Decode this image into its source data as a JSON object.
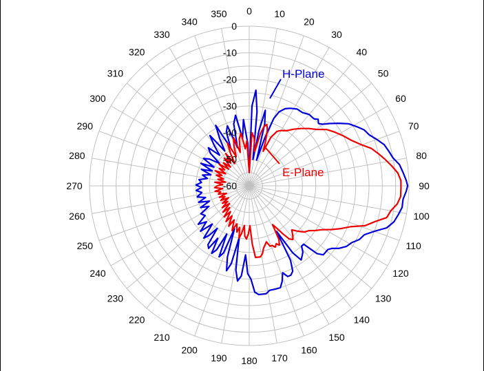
{
  "chart_data": {
    "type": "polar-line",
    "angle_ticks": [
      "0",
      "10",
      "20",
      "30",
      "40",
      "50",
      "60",
      "70",
      "80",
      "90",
      "100",
      "110",
      "120",
      "130",
      "140",
      "150",
      "160",
      "170",
      "180",
      "190",
      "200",
      "210",
      "220",
      "230",
      "240",
      "250",
      "260",
      "270",
      "280",
      "290",
      "300",
      "310",
      "320",
      "330",
      "340",
      "350"
    ],
    "radial_ticks": [
      "0",
      "-10",
      "-20",
      "-30",
      "-40",
      "-50",
      "-60"
    ],
    "radial_range": [
      -60,
      0
    ],
    "grid": true,
    "series": [
      {
        "name": "H-Plane",
        "color": "#0000dd",
        "points": [
          [
            0,
            -55
          ],
          [
            2,
            -30
          ],
          [
            4,
            -24
          ],
          [
            6,
            -32
          ],
          [
            8,
            -50
          ],
          [
            10,
            -39
          ],
          [
            12,
            -31
          ],
          [
            14,
            -36
          ],
          [
            16,
            -50
          ],
          [
            18,
            -41
          ],
          [
            20,
            -33
          ],
          [
            22,
            -30
          ],
          [
            25,
            -28
          ],
          [
            28,
            -27
          ],
          [
            32,
            -26
          ],
          [
            36,
            -26
          ],
          [
            40,
            -25
          ],
          [
            44,
            -25
          ],
          [
            46,
            -24
          ],
          [
            48,
            -25
          ],
          [
            50,
            -24
          ],
          [
            52,
            -22
          ],
          [
            55,
            -19
          ],
          [
            58,
            -16
          ],
          [
            61,
            -14
          ],
          [
            64,
            -12
          ],
          [
            67,
            -11
          ],
          [
            70,
            -9
          ],
          [
            73,
            -7
          ],
          [
            76,
            -6
          ],
          [
            79,
            -5
          ],
          [
            82,
            -3
          ],
          [
            85,
            -2
          ],
          [
            88,
            -1
          ],
          [
            90,
            -0.5
          ],
          [
            92,
            -1
          ],
          [
            95,
            -2
          ],
          [
            98,
            -2
          ],
          [
            101,
            -3
          ],
          [
            104,
            -4
          ],
          [
            107,
            -6
          ],
          [
            110,
            -10
          ],
          [
            113,
            -13
          ],
          [
            116,
            -14
          ],
          [
            119,
            -16
          ],
          [
            122,
            -17
          ],
          [
            125,
            -19
          ],
          [
            127,
            -21
          ],
          [
            129,
            -22
          ],
          [
            131,
            -22
          ],
          [
            133,
            -22
          ],
          [
            135,
            -24
          ],
          [
            137,
            -30
          ],
          [
            139,
            -30
          ],
          [
            141,
            -28
          ],
          [
            143,
            -27
          ],
          [
            145,
            -26
          ],
          [
            147,
            -30
          ],
          [
            149,
            -40
          ],
          [
            151,
            -28
          ],
          [
            153,
            -24
          ],
          [
            155,
            -23
          ],
          [
            157,
            -23
          ],
          [
            159,
            -25
          ],
          [
            161,
            -22
          ],
          [
            163,
            -20
          ],
          [
            165,
            -20
          ],
          [
            167,
            -20
          ],
          [
            169,
            -20
          ],
          [
            171,
            -19
          ],
          [
            173,
            -19
          ],
          [
            175,
            -19
          ],
          [
            177,
            -20
          ],
          [
            179,
            -25
          ],
          [
            181,
            -27
          ],
          [
            183,
            -34
          ],
          [
            185,
            -26
          ],
          [
            187,
            -24
          ],
          [
            189,
            -28
          ],
          [
            191,
            -40
          ],
          [
            193,
            -30
          ],
          [
            195,
            -27
          ],
          [
            197,
            -32
          ],
          [
            199,
            -43
          ],
          [
            201,
            -33
          ],
          [
            203,
            -31
          ],
          [
            205,
            -40
          ],
          [
            207,
            -33
          ],
          [
            209,
            -31
          ],
          [
            211,
            -37
          ],
          [
            213,
            -32
          ],
          [
            215,
            -33
          ],
          [
            217,
            -40
          ],
          [
            219,
            -36
          ],
          [
            221,
            -34
          ],
          [
            224,
            -40
          ],
          [
            227,
            -35
          ],
          [
            230,
            -39
          ],
          [
            233,
            -36
          ],
          [
            236,
            -40
          ],
          [
            240,
            -39
          ],
          [
            243,
            -43
          ],
          [
            246,
            -40
          ],
          [
            249,
            -44
          ],
          [
            252,
            -40
          ],
          [
            255,
            -43
          ],
          [
            258,
            -40
          ],
          [
            262,
            -42
          ],
          [
            265,
            -40
          ],
          [
            268,
            -42
          ],
          [
            271,
            -40
          ],
          [
            274,
            -42
          ],
          [
            277,
            -41
          ],
          [
            280,
            -44
          ],
          [
            283,
            -42
          ],
          [
            286,
            -45
          ],
          [
            289,
            -41
          ],
          [
            292,
            -45
          ],
          [
            295,
            -40
          ],
          [
            298,
            -45
          ],
          [
            301,
            -40
          ],
          [
            304,
            -42
          ],
          [
            307,
            -46
          ],
          [
            310,
            -41
          ],
          [
            313,
            -39
          ],
          [
            316,
            -44
          ],
          [
            319,
            -40
          ],
          [
            322,
            -36
          ],
          [
            325,
            -44
          ],
          [
            328,
            -39
          ],
          [
            331,
            -34
          ],
          [
            334,
            -44
          ],
          [
            337,
            -38
          ],
          [
            340,
            -36
          ],
          [
            343,
            -45
          ],
          [
            346,
            -36
          ],
          [
            349,
            -33
          ],
          [
            352,
            -42
          ],
          [
            355,
            -35
          ],
          [
            358,
            -44
          ],
          [
            360,
            -55
          ]
        ]
      },
      {
        "name": "E-Plane",
        "color": "#ee0000",
        "points": [
          [
            0,
            -55
          ],
          [
            3,
            -40
          ],
          [
            6,
            -42
          ],
          [
            9,
            -47
          ],
          [
            12,
            -40
          ],
          [
            14,
            -37
          ],
          [
            16,
            -36
          ],
          [
            18,
            -38
          ],
          [
            20,
            -42
          ],
          [
            22,
            -46
          ],
          [
            24,
            -40
          ],
          [
            27,
            -37
          ],
          [
            30,
            -36
          ],
          [
            34,
            -35
          ],
          [
            38,
            -33
          ],
          [
            42,
            -31
          ],
          [
            46,
            -29
          ],
          [
            50,
            -27
          ],
          [
            54,
            -24
          ],
          [
            58,
            -22
          ],
          [
            62,
            -20
          ],
          [
            66,
            -18
          ],
          [
            70,
            -15
          ],
          [
            73,
            -12
          ],
          [
            76,
            -10
          ],
          [
            79,
            -8
          ],
          [
            82,
            -6
          ],
          [
            85,
            -4
          ],
          [
            88,
            -3
          ],
          [
            91,
            -3
          ],
          [
            94,
            -3
          ],
          [
            97,
            -4
          ],
          [
            100,
            -6
          ],
          [
            103,
            -7
          ],
          [
            106,
            -11
          ],
          [
            109,
            -14
          ],
          [
            112,
            -19
          ],
          [
            115,
            -22
          ],
          [
            118,
            -25
          ],
          [
            121,
            -28
          ],
          [
            124,
            -30
          ],
          [
            127,
            -32
          ],
          [
            130,
            -33
          ],
          [
            133,
            -35
          ],
          [
            136,
            -37
          ],
          [
            139,
            -35
          ],
          [
            141,
            -34
          ],
          [
            143,
            -35
          ],
          [
            145,
            -38
          ],
          [
            147,
            -41
          ],
          [
            149,
            -43
          ],
          [
            151,
            -37
          ],
          [
            153,
            -35
          ],
          [
            155,
            -36
          ],
          [
            157,
            -35
          ],
          [
            159,
            -36
          ],
          [
            161,
            -36
          ],
          [
            163,
            -38
          ],
          [
            165,
            -37
          ],
          [
            167,
            -36
          ],
          [
            169,
            -34
          ],
          [
            171,
            -33
          ],
          [
            173,
            -33
          ],
          [
            175,
            -33
          ],
          [
            177,
            -38
          ],
          [
            179,
            -45
          ],
          [
            181,
            -42
          ],
          [
            183,
            -40
          ],
          [
            185,
            -41
          ],
          [
            187,
            -45
          ],
          [
            189,
            -42
          ],
          [
            191,
            -40
          ],
          [
            193,
            -44
          ],
          [
            195,
            -42
          ],
          [
            198,
            -45
          ],
          [
            201,
            -42
          ],
          [
            204,
            -46
          ],
          [
            207,
            -43
          ],
          [
            210,
            -47
          ],
          [
            213,
            -44
          ],
          [
            216,
            -48
          ],
          [
            219,
            -45
          ],
          [
            222,
            -49
          ],
          [
            225,
            -46
          ],
          [
            228,
            -50
          ],
          [
            231,
            -47
          ],
          [
            234,
            -50
          ],
          [
            237,
            -48
          ],
          [
            240,
            -51
          ],
          [
            243,
            -48
          ],
          [
            246,
            -50
          ],
          [
            249,
            -48
          ],
          [
            252,
            -51
          ],
          [
            255,
            -48
          ],
          [
            258,
            -49
          ],
          [
            261,
            -47
          ],
          [
            264,
            -50
          ],
          [
            267,
            -47
          ],
          [
            270,
            -48
          ],
          [
            273,
            -50
          ],
          [
            276,
            -47
          ],
          [
            279,
            -51
          ],
          [
            282,
            -48
          ],
          [
            285,
            -50
          ],
          [
            288,
            -47
          ],
          [
            291,
            -49
          ],
          [
            294,
            -46
          ],
          [
            297,
            -50
          ],
          [
            300,
            -47
          ],
          [
            303,
            -49
          ],
          [
            306,
            -46
          ],
          [
            309,
            -50
          ],
          [
            312,
            -47
          ],
          [
            315,
            -50
          ],
          [
            318,
            -46
          ],
          [
            321,
            -49
          ],
          [
            324,
            -45
          ],
          [
            327,
            -50
          ],
          [
            330,
            -46
          ],
          [
            333,
            -42
          ],
          [
            336,
            -48
          ],
          [
            339,
            -44
          ],
          [
            342,
            -41
          ],
          [
            345,
            -47
          ],
          [
            348,
            -42
          ],
          [
            351,
            -40
          ],
          [
            354,
            -46
          ],
          [
            357,
            -43
          ],
          [
            360,
            -55
          ]
        ]
      }
    ],
    "annotations": [
      {
        "text": "H-Plane",
        "color": "#0000dd"
      },
      {
        "text": "E-Plane",
        "color": "#ee0000"
      }
    ]
  }
}
